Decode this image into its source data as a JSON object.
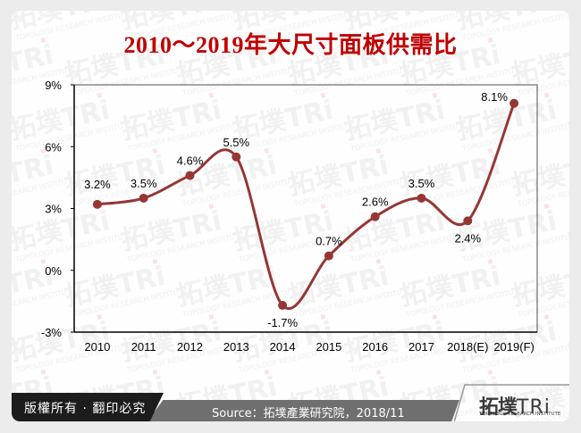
{
  "title": "2010～2019年大尺寸面板供需比",
  "footer": {
    "copyright": "版權所有 · 翻印必究",
    "source": "Source：拓墣產業研究院，2018/11",
    "logo_cn": "拓墣",
    "logo_tri": "TRi",
    "logo_en": "TOPOLOGY RESEARCH INSTITUTE"
  },
  "watermark": {
    "text_cn": "拓墣",
    "text_tri": "TRi",
    "text_en": "TOPOLOGY RESEARCH INSTITUTE"
  },
  "colors": {
    "line": "#953735",
    "title": "#c00000",
    "axis": "#000000"
  },
  "chart_data": {
    "type": "line",
    "title": "2010～2019年大尺寸面板供需比",
    "xlabel": "",
    "ylabel": "",
    "categories": [
      "2010",
      "2011",
      "2012",
      "2013",
      "2014",
      "2015",
      "2016",
      "2017",
      "2018(E)",
      "2019(F)"
    ],
    "series": [
      {
        "name": "供需比",
        "values": [
          3.2,
          3.5,
          4.6,
          5.5,
          -1.7,
          0.7,
          2.6,
          3.5,
          2.4,
          8.1
        ],
        "labels": [
          "3.2%",
          "3.5%",
          "4.6%",
          "5.5%",
          "-1.7%",
          "0.7%",
          "2.6%",
          "3.5%",
          "2.4%",
          "8.1%"
        ]
      }
    ],
    "yticks": [
      -3,
      0,
      3,
      6,
      9
    ],
    "ytick_labels": [
      "-3%",
      "0%",
      "3%",
      "6%",
      "9%"
    ],
    "ylim": [
      -3,
      9
    ],
    "smooth": true,
    "markers": true,
    "grid": false,
    "legend": "none"
  }
}
